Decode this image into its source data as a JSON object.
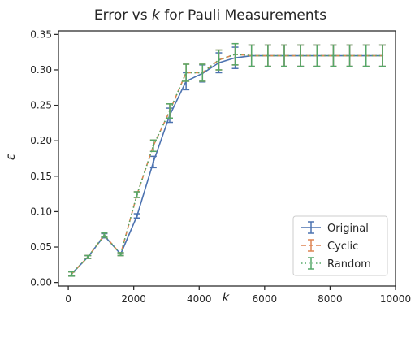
{
  "chart_data": {
    "type": "line",
    "title": "Error vs k for Pauli Measurements",
    "title_parts": {
      "prefix": "Error vs ",
      "var": "k",
      "suffix": " for Pauli Measurements"
    },
    "xlabel": "k",
    "ylabel": "ε",
    "xlim": [
      -300,
      10000
    ],
    "ylim": [
      -0.005,
      0.355
    ],
    "xticks": [
      0,
      2000,
      4000,
      6000,
      8000,
      10000
    ],
    "yticks": [
      0.0,
      0.05,
      0.1,
      0.15,
      0.2,
      0.25,
      0.3,
      0.35
    ],
    "xtick_labels": [
      "0",
      "2000",
      "4000",
      "6000",
      "8000",
      "10000"
    ],
    "ytick_labels": [
      "0.00",
      "0.05",
      "0.10",
      "0.15",
      "0.20",
      "0.25",
      "0.30",
      "0.35"
    ],
    "grid": false,
    "legend_position": "lower-right",
    "x": [
      100,
      600,
      1100,
      1600,
      2100,
      2600,
      3100,
      3600,
      4100,
      4600,
      5100,
      5600,
      6100,
      6600,
      7100,
      7600,
      8100,
      8600,
      9100,
      9600
    ],
    "series": [
      {
        "name": "Original",
        "color": "#4C72B0",
        "dash": "solid",
        "y": [
          0.012,
          0.036,
          0.066,
          0.04,
          0.094,
          0.17,
          0.236,
          0.284,
          0.295,
          0.31,
          0.317,
          0.32,
          0.32,
          0.32,
          0.32,
          0.32,
          0.32,
          0.32,
          0.32,
          0.32
        ],
        "err": [
          0.003,
          0.002,
          0.003,
          0.002,
          0.003,
          0.008,
          0.01,
          0.012,
          0.012,
          0.014,
          0.015,
          0.015,
          0.015,
          0.015,
          0.015,
          0.015,
          0.015,
          0.015,
          0.015,
          0.015
        ]
      },
      {
        "name": "Cyclic",
        "color": "#DD8452",
        "dash": "dashed",
        "y": [
          0.012,
          0.036,
          0.067,
          0.04,
          0.124,
          0.193,
          0.242,
          0.296,
          0.296,
          0.314,
          0.322,
          0.32,
          0.32,
          0.32,
          0.32,
          0.32,
          0.32,
          0.32,
          0.32,
          0.32
        ],
        "err": [
          0.003,
          0.002,
          0.003,
          0.002,
          0.004,
          0.008,
          0.01,
          0.012,
          0.012,
          0.014,
          0.015,
          0.015,
          0.015,
          0.015,
          0.015,
          0.015,
          0.015,
          0.015,
          0.015,
          0.015
        ]
      },
      {
        "name": "Random",
        "color": "#55A868",
        "dash": "dotted",
        "y": [
          0.012,
          0.036,
          0.067,
          0.04,
          0.124,
          0.193,
          0.242,
          0.296,
          0.296,
          0.314,
          0.322,
          0.32,
          0.32,
          0.32,
          0.32,
          0.32,
          0.32,
          0.32,
          0.32,
          0.32
        ],
        "err": [
          0.003,
          0.002,
          0.003,
          0.002,
          0.004,
          0.008,
          0.01,
          0.012,
          0.012,
          0.014,
          0.015,
          0.015,
          0.015,
          0.015,
          0.015,
          0.015,
          0.015,
          0.015,
          0.015,
          0.015
        ]
      }
    ],
    "colors": {
      "axis": "#262626",
      "background": "#ffffff",
      "legend_border": "#cccccc"
    }
  }
}
